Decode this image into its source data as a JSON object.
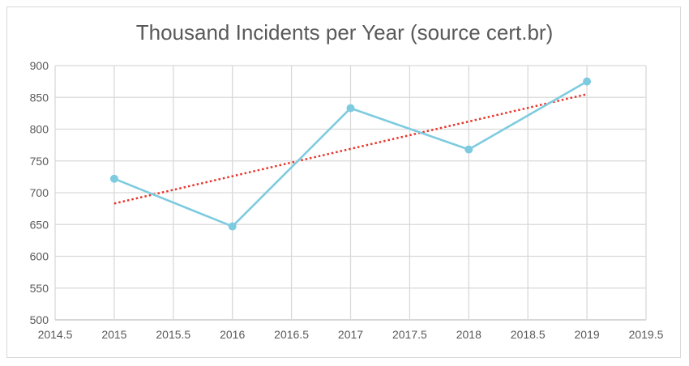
{
  "chart_data": {
    "type": "line",
    "title": "Thousand Incidents per Year (source cert.br)",
    "xlabel": "",
    "ylabel": "",
    "xlim": [
      2014.5,
      2019.5
    ],
    "ylim": [
      500,
      900
    ],
    "x_ticks": [
      2014.5,
      2015,
      2015.5,
      2016,
      2016.5,
      2017,
      2017.5,
      2018,
      2018.5,
      2019,
      2019.5
    ],
    "y_ticks": [
      500,
      550,
      600,
      650,
      700,
      750,
      800,
      850,
      900
    ],
    "grid": true,
    "legend": "none",
    "series": [
      {
        "x": [
          2015,
          2016,
          2017,
          2018,
          2019
        ],
        "values": [
          722,
          647,
          833,
          768,
          875
        ],
        "color": "#7ecbe0",
        "style": "line-markers"
      }
    ],
    "trendline": {
      "x": [
        2015,
        2019
      ],
      "values": [
        683,
        855
      ],
      "color": "#e8352a",
      "style": "dotted"
    }
  }
}
